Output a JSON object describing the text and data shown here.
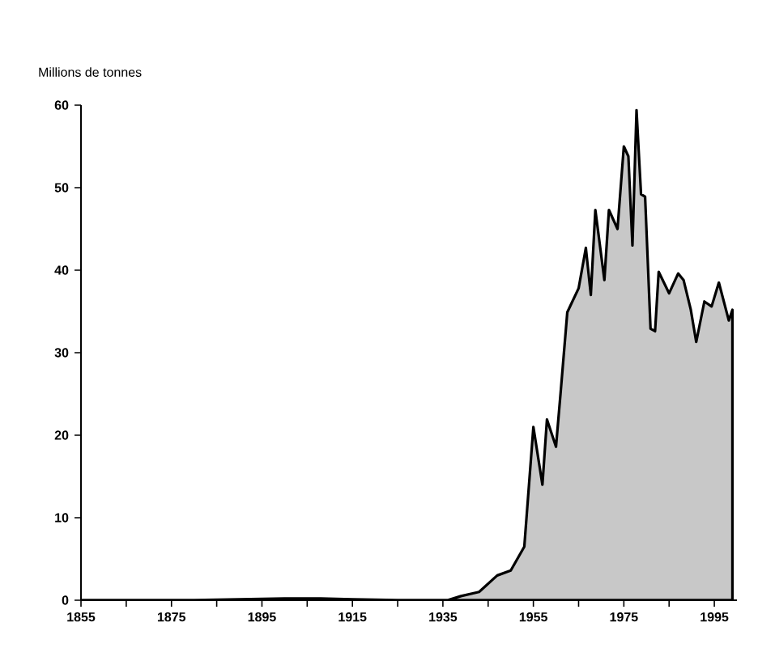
{
  "chart_data": {
    "type": "area",
    "ylabel": "Millions de tonnes",
    "x": [
      1855,
      1880,
      1900,
      1908,
      1915,
      1925,
      1936,
      1939,
      1943,
      1947,
      1950,
      1953,
      1955,
      1957,
      1958,
      1960,
      1961,
      1962.5,
      1965,
      1966.6,
      1967.7,
      1968.7,
      1970.7,
      1971.7,
      1973.6,
      1975,
      1976,
      1976.9,
      1977.8,
      1978.8,
      1979.7,
      1980.9,
      1981.9,
      1982.7,
      1985,
      1987,
      1988.2,
      1989.8,
      1991,
      1992.8,
      1994.4,
      1996,
      1998.2,
      1999
    ],
    "series": [
      {
        "color": "#c8c8c8",
        "values": [
          0,
          0,
          0.2,
          0.2,
          0.1,
          0,
          0,
          0.5,
          1,
          3,
          3.6,
          6.5,
          21,
          14,
          21.9,
          18.6,
          25,
          34.9,
          37.8,
          42.7,
          37,
          47.3,
          38.8,
          47.3,
          45,
          55,
          53.8,
          43,
          59.4,
          49.2,
          48.9,
          32.9,
          32.6,
          39.8,
          37.2,
          39.6,
          38.8,
          35.2,
          31.3,
          36.2,
          35.6,
          38.5,
          33.9,
          35.2
        ]
      }
    ],
    "xlim": [
      1855,
      2000
    ],
    "ylim": [
      0,
      60
    ],
    "xticks": [
      1855,
      {
        "value": 1865,
        "label": null
      },
      1875,
      {
        "value": 1885,
        "label": null
      },
      1895,
      {
        "value": 1905,
        "label": null
      },
      1915,
      {
        "value": 1925,
        "label": null
      },
      1935,
      {
        "value": 1945,
        "label": null
      },
      1955,
      {
        "value": 1965,
        "label": null
      },
      1975,
      {
        "value": 1985,
        "label": null
      },
      1995
    ],
    "yticks": [
      0,
      10,
      20,
      30,
      40,
      50,
      60
    ],
    "grid": false
  }
}
